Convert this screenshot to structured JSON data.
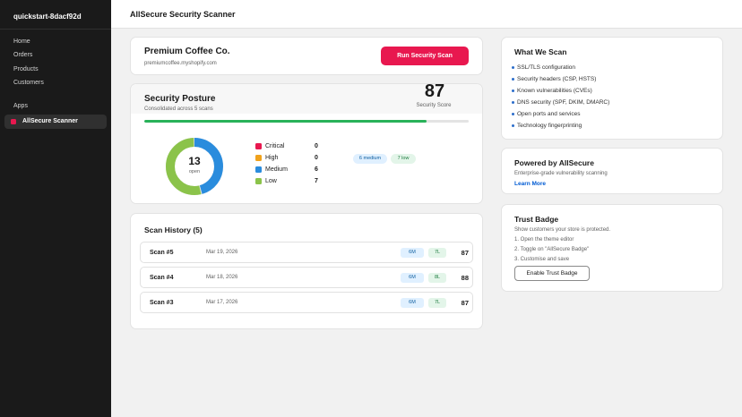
{
  "sidebar": {
    "store_name": "quickstart-8dacf92d",
    "nav": [
      "Home",
      "Orders",
      "Products",
      "Customers"
    ],
    "apps_label": "Apps",
    "active_app": "AllSecure Scanner"
  },
  "header": {
    "title": "AllSecure Security Scanner"
  },
  "store_card": {
    "name": "Premium Coffee Co.",
    "domain": "premiumcoffee.myshopify.com",
    "scan_button": "Run Security Scan"
  },
  "posture": {
    "title": "Security Posture",
    "subtitle": "Consolidated across 5 scans",
    "score": "87",
    "score_label": "Security Score",
    "score_fraction": 0.87,
    "open_count": "13",
    "open_label": "open",
    "legend": [
      {
        "label": "Critical",
        "value": "0",
        "color": "#e8184f"
      },
      {
        "label": "High",
        "value": "0",
        "color": "#f0a21c"
      },
      {
        "label": "Medium",
        "value": "6",
        "color": "#2a8cdd"
      },
      {
        "label": "Low",
        "value": "7",
        "color": "#8bc34a"
      }
    ],
    "pills": {
      "medium": "6 medium",
      "low": "7 low"
    }
  },
  "history": {
    "title": "Scan History (5)",
    "rows": [
      {
        "name": "Scan #5",
        "date": "Mar 19, 2026",
        "m": "6M",
        "l": "7L",
        "score": "87"
      },
      {
        "name": "Scan #4",
        "date": "Mar 18, 2026",
        "m": "6M",
        "l": "8L",
        "score": "88"
      },
      {
        "name": "Scan #3",
        "date": "Mar 17, 2026",
        "m": "6M",
        "l": "7L",
        "score": "87"
      }
    ]
  },
  "what_we_scan": {
    "title": "What We Scan",
    "items": [
      "SSL/TLS configuration",
      "Security headers (CSP, HSTS)",
      "Known vulnerabilities (CVEs)",
      "DNS security (SPF, DKIM, DMARC)",
      "Open ports and services",
      "Technology fingerprinting"
    ]
  },
  "powered": {
    "title": "Powered by AllSecure",
    "text": "Enterprise-grade vulnerability scanning",
    "link": "Learn More"
  },
  "trust": {
    "title": "Trust Badge",
    "text": "Show customers your store is protected.",
    "steps": [
      "1. Open the theme editor",
      "2. Toggle on \"AllSecure Badge\"",
      "3. Customise and save"
    ],
    "button": "Enable Trust Badge"
  }
}
